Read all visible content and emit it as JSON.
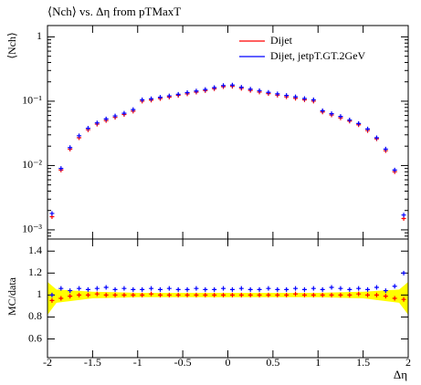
{
  "chart_data": [
    {
      "type": "scatter",
      "title": "⟨Nch⟩ vs. Δη from pTMaxT",
      "ylabel": "⟨Nch⟩",
      "x": [
        -1.95,
        -1.85,
        -1.75,
        -1.65,
        -1.55,
        -1.45,
        -1.35,
        -1.25,
        -1.15,
        -1.05,
        -0.95,
        -0.85,
        -0.75,
        -0.65,
        -0.55,
        -0.45,
        -0.35,
        -0.25,
        -0.15,
        -0.05,
        0.05,
        0.15,
        0.25,
        0.35,
        0.45,
        0.55,
        0.65,
        0.75,
        0.85,
        0.95,
        1.05,
        1.15,
        1.25,
        1.35,
        1.45,
        1.55,
        1.65,
        1.75,
        1.85,
        1.95
      ],
      "series": [
        {
          "name": "Dijet",
          "color": "#ff0000",
          "values": [
            0.0016,
            0.0085,
            0.018,
            0.027,
            0.036,
            0.044,
            0.05,
            0.056,
            0.062,
            0.07,
            0.1,
            0.104,
            0.11,
            0.116,
            0.123,
            0.13,
            0.138,
            0.146,
            0.156,
            0.168,
            0.17,
            0.158,
            0.147,
            0.139,
            0.131,
            0.124,
            0.117,
            0.111,
            0.105,
            0.1,
            0.068,
            0.061,
            0.055,
            0.049,
            0.043,
            0.035,
            0.026,
            0.017,
            0.008,
            0.0015
          ]
        },
        {
          "name": "Dijet, jetpT.GT.2GeV",
          "color": "#0000ff",
          "values": [
            0.0018,
            0.009,
            0.019,
            0.029,
            0.038,
            0.046,
            0.053,
            0.059,
            0.065,
            0.074,
            0.105,
            0.109,
            0.115,
            0.121,
            0.128,
            0.136,
            0.144,
            0.152,
            0.163,
            0.175,
            0.178,
            0.165,
            0.154,
            0.146,
            0.137,
            0.13,
            0.123,
            0.117,
            0.11,
            0.105,
            0.071,
            0.064,
            0.058,
            0.051,
            0.045,
            0.037,
            0.027,
            0.018,
            0.0085,
            0.0017
          ]
        }
      ],
      "xlim": [
        -2,
        2
      ],
      "ylim": [
        0.00072,
        1.5
      ],
      "log_y": true,
      "yticks": [
        {
          "value": 0.001,
          "label": "10⁻³"
        },
        {
          "value": 0.01,
          "label": "10⁻²"
        },
        {
          "value": 0.1,
          "label": "10⁻¹"
        },
        1
      ],
      "legend": "upper right"
    },
    {
      "type": "scatter",
      "ylabel": "MC/data",
      "xlabel": "Δη",
      "x": [
        -1.95,
        -1.85,
        -1.75,
        -1.65,
        -1.55,
        -1.45,
        -1.35,
        -1.25,
        -1.15,
        -1.05,
        -0.95,
        -0.85,
        -0.75,
        -0.65,
        -0.55,
        -0.45,
        -0.35,
        -0.25,
        -0.15,
        -0.05,
        0.05,
        0.15,
        0.25,
        0.35,
        0.45,
        0.55,
        0.65,
        0.75,
        0.85,
        0.95,
        1.05,
        1.15,
        1.25,
        1.35,
        1.45,
        1.55,
        1.65,
        1.75,
        1.85,
        1.95
      ],
      "series": [
        {
          "color": "#ff0000",
          "values": [
            0.95,
            0.97,
            0.99,
            1.0,
            1.0,
            1.01,
            1.0,
            1.0,
            1.0,
            1.0,
            1.0,
            1.01,
            1.0,
            1.0,
            1.0,
            1.0,
            1.0,
            1.0,
            1.0,
            1.0,
            1.0,
            1.0,
            1.0,
            1.0,
            1.0,
            1.0,
            1.0,
            1.01,
            1.0,
            1.0,
            1.0,
            1.0,
            1.0,
            1.0,
            1.01,
            1.0,
            1.0,
            0.99,
            0.97,
            0.96
          ]
        },
        {
          "color": "#0000ff",
          "values": [
            1.0,
            1.06,
            1.04,
            1.06,
            1.05,
            1.06,
            1.07,
            1.05,
            1.06,
            1.05,
            1.05,
            1.06,
            1.05,
            1.06,
            1.05,
            1.05,
            1.06,
            1.05,
            1.05,
            1.06,
            1.05,
            1.06,
            1.05,
            1.05,
            1.06,
            1.05,
            1.05,
            1.06,
            1.05,
            1.06,
            1.05,
            1.07,
            1.06,
            1.05,
            1.06,
            1.05,
            1.07,
            1.04,
            1.08,
            1.2
          ]
        }
      ],
      "band": {
        "color": "#ffff00",
        "x": [
          -2,
          -1.9,
          -1.5,
          -1,
          0,
          1,
          1.5,
          1.9,
          2
        ],
        "lower": [
          0.82,
          0.93,
          0.97,
          0.98,
          0.98,
          0.98,
          0.97,
          0.93,
          0.82
        ],
        "upper": [
          1.12,
          1.05,
          1.03,
          1.02,
          1.02,
          1.02,
          1.03,
          1.05,
          1.12
        ]
      },
      "xlim": [
        -2,
        2
      ],
      "ylim": [
        0.43,
        1.51
      ],
      "xticks": [
        -2,
        -1.5,
        -1,
        -0.5,
        0,
        0.5,
        1,
        1.5,
        2
      ],
      "yticks": [
        0.6,
        0.8,
        1,
        1.2,
        1.4
      ]
    }
  ]
}
